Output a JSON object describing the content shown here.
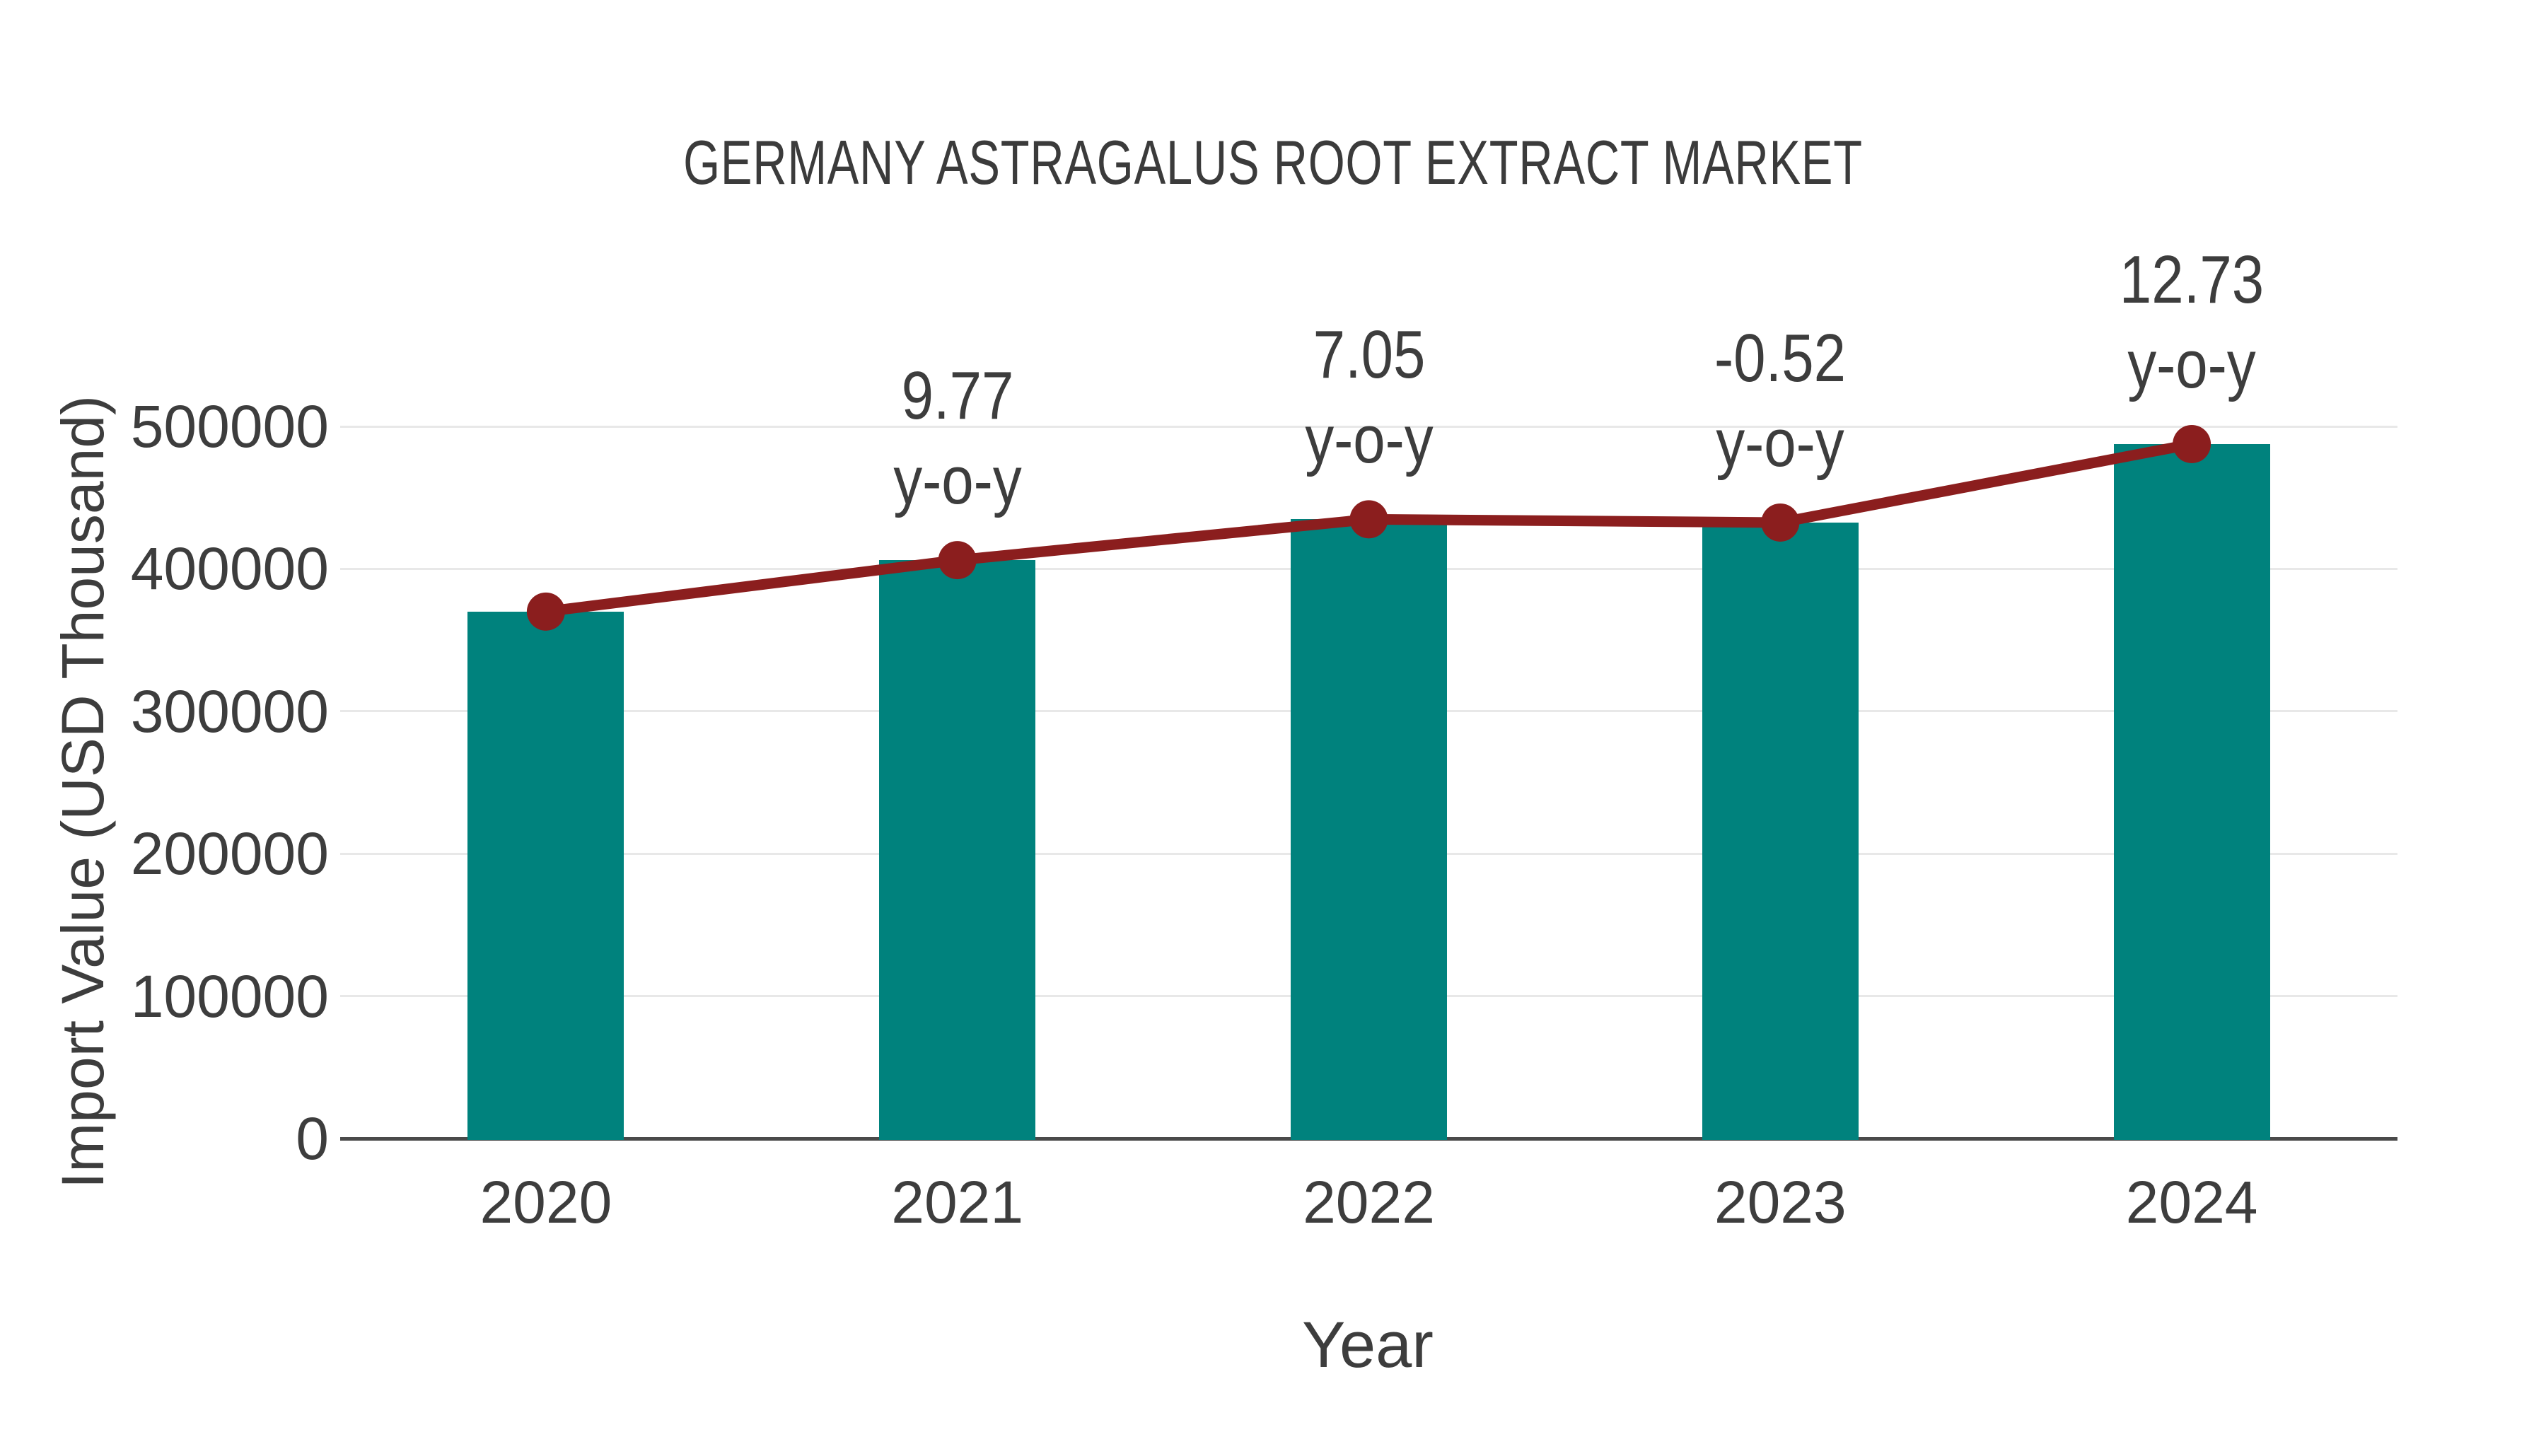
{
  "chart_data": {
    "type": "bar+line",
    "title": "GERMANY ASTRAGALUS ROOT EXTRACT MARKET",
    "xlabel": "Year",
    "ylabel": "Import Value (USD Thousand)",
    "categories": [
      "2020",
      "2021",
      "2022",
      "2023",
      "2024"
    ],
    "series": [
      {
        "name": "Import Value bars",
        "type": "bar",
        "values": [
          370000,
          406100,
          434800,
          432500,
          487600
        ]
      },
      {
        "name": "Import Value trend line",
        "type": "line",
        "values": [
          370000,
          406100,
          434800,
          432500,
          487600
        ],
        "point_labels": [
          null,
          "9.77",
          "7.05",
          "-0.52",
          "12.73"
        ]
      }
    ],
    "point_label_suffix": "y-o-y",
    "ylim": [
      0,
      500000
    ],
    "yticks": [
      0,
      100000,
      200000,
      300000,
      400000,
      500000
    ],
    "ytick_labels": [
      "0",
      "100000",
      "200000",
      "300000",
      "400000",
      "500000"
    ],
    "grid": "horizontal",
    "legend": "none",
    "colors": {
      "bar": "#00827d",
      "line": "#8b1e1e",
      "marker": "#8b1e1e",
      "grid": "#e8e8e8",
      "axis": "#4a4a4a",
      "text": "#3d3d3d",
      "background": "#ffffff"
    }
  }
}
